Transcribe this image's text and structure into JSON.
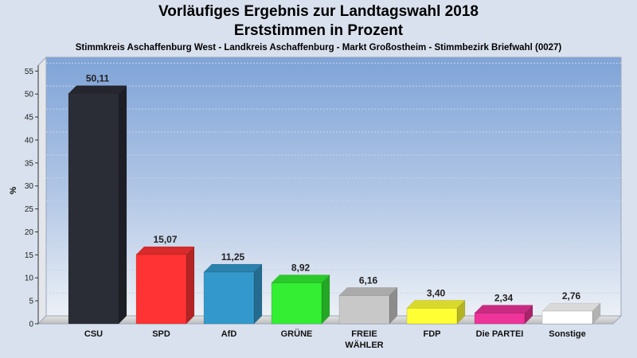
{
  "header": {
    "title_line1": "Vorläufiges Ergebnis zur Landtagswahl 2018",
    "title_line2": "Erststimmen in Prozent",
    "subtitle": "Stimmkreis Aschaffenburg West - Landkreis Aschaffenburg - Markt Großostheim - Stimmbezirk Briefwahl (0027)"
  },
  "chart_data": {
    "type": "bar",
    "title": "Vorläufiges Ergebnis zur Landtagswahl 2018",
    "subtitle": "Erststimmen in Prozent",
    "ylabel": "%",
    "xlabel": "",
    "ylim": [
      0,
      58
    ],
    "yticks": [
      0,
      5,
      10,
      15,
      20,
      25,
      30,
      35,
      40,
      45,
      50,
      55
    ],
    "grid": true,
    "categories": [
      [
        "CSU"
      ],
      [
        "SPD"
      ],
      [
        "AfD"
      ],
      [
        "GRÜNE"
      ],
      [
        "FREIE",
        "WÄHLER"
      ],
      [
        "FDP"
      ],
      [
        "Die PARTEI"
      ],
      [
        "Sonstige"
      ]
    ],
    "values": [
      50.11,
      15.07,
      11.25,
      8.92,
      6.16,
      3.4,
      2.34,
      2.76
    ],
    "value_labels": [
      "50,11",
      "15,07",
      "11,25",
      "8,92",
      "6,16",
      "3,40",
      "2,34",
      "2,76"
    ],
    "colors": [
      "#2b2d36",
      "#ff3333",
      "#3399cc",
      "#33ee33",
      "#c8c8c8",
      "#ffff33",
      "#ee3399",
      "#ffffff"
    ]
  }
}
